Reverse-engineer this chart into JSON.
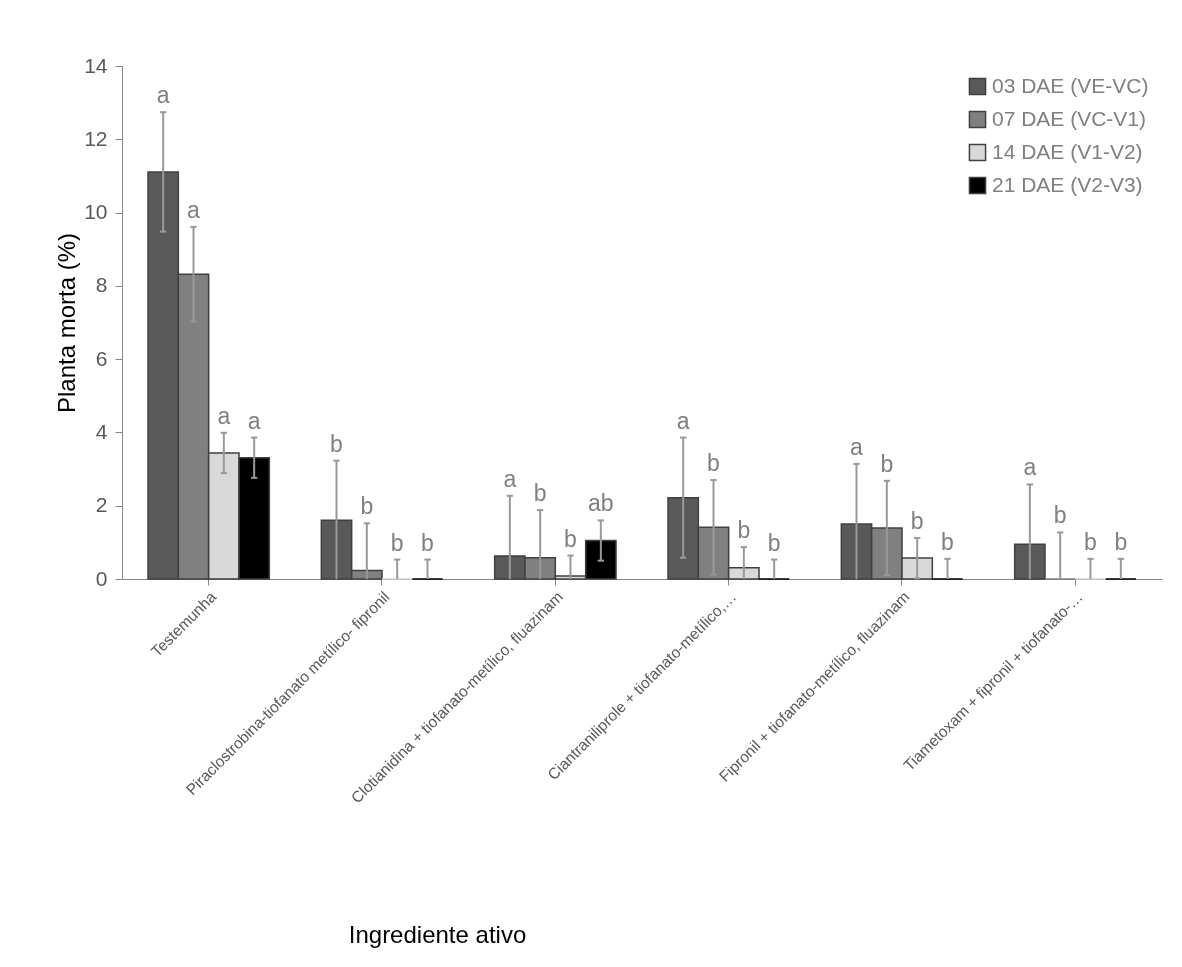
{
  "chart_data": {
    "type": "bar",
    "xlabel": "Ingrediente ativo",
    "ylabel": "Planta morta (%)",
    "categories": [
      "Testemunha",
      "Piraclostrobina-tiofanato metílico- fipronil",
      "Clotianidina + tiofanato-metílico, fluazinam",
      "Ciantraniliprole + tiofanato-metílico,…",
      "Fipronil + tiofanato-metílico,  fluazinam",
      "Tiametoxam + fipronil + tiofanato-…"
    ],
    "series": [
      {
        "name": "03 DAE (VE-VC)",
        "color": "#595959",
        "values": [
          11.11,
          1.6,
          0.63,
          2.22,
          1.5,
          0.95
        ],
        "errors": [
          1.63,
          [
            0,
            3.23
          ],
          [
            0,
            2.27
          ],
          1.64,
          [
            0,
            3.14
          ],
          [
            0,
            2.58
          ]
        ],
        "value_labels": [
          "a",
          "b",
          "a",
          "a",
          "a",
          "a"
        ]
      },
      {
        "name": "07  DAE (VC-V1)",
        "color": "#808080",
        "values": [
          8.32,
          0.23,
          0.58,
          1.41,
          1.39,
          0
        ],
        "errors": [
          1.29,
          [
            0,
            1.52
          ],
          [
            0,
            1.88
          ],
          1.29,
          1.29,
          [
            0,
            1.27
          ]
        ],
        "value_labels": [
          "a",
          "b",
          "b",
          "b",
          "b",
          "b"
        ]
      },
      {
        "name": "14 DAE (V1-V2)",
        "color": "#d9d9d9",
        "values": [
          3.44,
          0,
          0.08,
          0.31,
          0.57,
          0
        ],
        "errors": [
          0.55,
          [
            0,
            0.53
          ],
          [
            0,
            0.64
          ],
          [
            0,
            0.87
          ],
          0.55,
          [
            0,
            0.55
          ]
        ],
        "value_labels": [
          "a",
          "b",
          "b",
          "b",
          "b",
          "b"
        ]
      },
      {
        "name": "21 DAE (V2-V3)",
        "color": "#000000",
        "values": [
          3.31,
          0,
          1.05,
          0,
          0,
          0
        ],
        "errors": [
          0.55,
          [
            0,
            0.53
          ],
          0.55,
          [
            0,
            0.53
          ],
          [
            0,
            0.55
          ],
          [
            0,
            0.55
          ]
        ],
        "value_labels": [
          "a",
          "b",
          "ab",
          "b",
          "b",
          "b"
        ]
      }
    ],
    "ylim": [
      0,
      14
    ],
    "yticks": [
      0,
      2,
      4,
      6,
      8,
      10,
      12,
      14
    ],
    "grid": false,
    "legend": "top right"
  }
}
